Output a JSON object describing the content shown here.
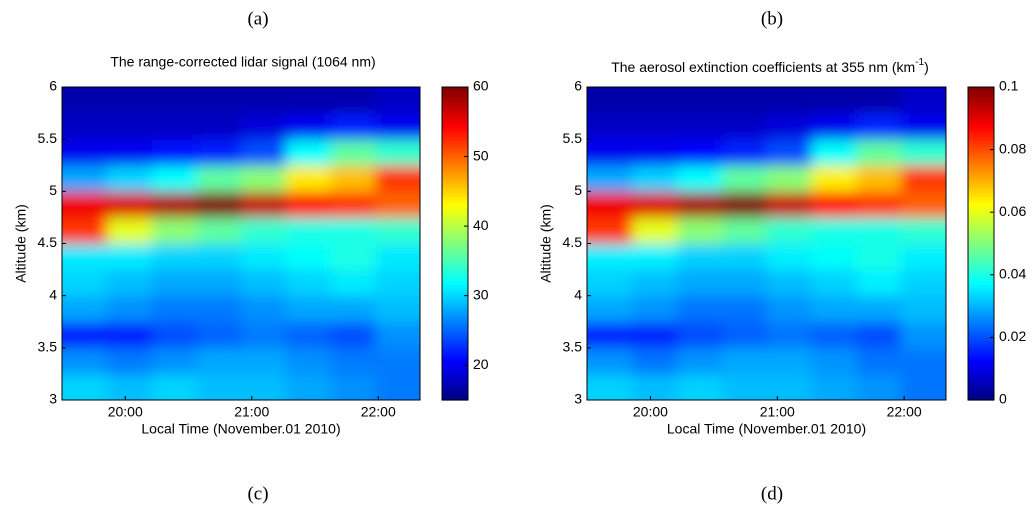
{
  "captions": [
    "(a)",
    "(b)",
    "(c)",
    "(d)"
  ],
  "chart_data": [
    {
      "type": "heatmap",
      "title": "The range-corrected lidar signal (1064 nm)",
      "xlabel": "Local Time (November.01 2010)",
      "ylabel": "Altitude (km)",
      "colormap": "jet",
      "x": [
        19.68,
        20.03,
        20.39,
        20.74,
        21.09,
        21.45,
        21.8,
        22.15
      ],
      "y": [
        3.125,
        3.375,
        3.625,
        3.875,
        4.125,
        4.375,
        4.625,
        4.875,
        5.125,
        5.375,
        5.625,
        5.875
      ],
      "z": [
        [
          30,
          29,
          30,
          29,
          29,
          28,
          27,
          26
        ],
        [
          27,
          26,
          27,
          28,
          28,
          27,
          26,
          26
        ],
        [
          22,
          22,
          24,
          25,
          26,
          25,
          24,
          27
        ],
        [
          28,
          27,
          26,
          26,
          27,
          28,
          28,
          29
        ],
        [
          30,
          29,
          28,
          28,
          29,
          30,
          31,
          30
        ],
        [
          31,
          31,
          30,
          30,
          31,
          32,
          33,
          31
        ],
        [
          52,
          42,
          38,
          36,
          34,
          33,
          33,
          34
        ],
        [
          55,
          56,
          58,
          60,
          57,
          54,
          52,
          50
        ],
        [
          28,
          30,
          32,
          36,
          38,
          44,
          46,
          52
        ],
        [
          20,
          20,
          21,
          22,
          24,
          32,
          36,
          34
        ],
        [
          18,
          18,
          18,
          18,
          19,
          20,
          22,
          20
        ],
        [
          17,
          17,
          17,
          17,
          17,
          17,
          17,
          18
        ]
      ],
      "xlim": [
        19.5,
        22.33
      ],
      "ylim": [
        3,
        6
      ],
      "xticks": [
        {
          "value": 20,
          "label": "20:00"
        },
        {
          "value": 21,
          "label": "21:00"
        },
        {
          "value": 22,
          "label": "22:00"
        }
      ],
      "yticks": [
        3,
        3.5,
        4,
        4.5,
        5,
        5.5,
        6
      ],
      "clim": [
        15,
        60
      ],
      "cticks": [
        20,
        30,
        40,
        50,
        60
      ]
    },
    {
      "type": "heatmap",
      "title": "The aerosol extinction coefficients at 355 nm (km",
      "title_superscript": "-1",
      "title_suffix": ")",
      "xlabel": "Local Time (November.01 2010)",
      "ylabel": "Altitude (km)",
      "colormap": "jet",
      "x": [
        19.68,
        20.03,
        20.39,
        20.74,
        21.09,
        21.45,
        21.8,
        22.15
      ],
      "y": [
        3.125,
        3.375,
        3.625,
        3.875,
        4.125,
        4.375,
        4.625,
        4.875,
        5.125,
        5.375,
        5.625,
        5.875
      ],
      "z": [
        [
          0.033,
          0.031,
          0.033,
          0.031,
          0.031,
          0.029,
          0.027,
          0.024
        ],
        [
          0.027,
          0.024,
          0.027,
          0.029,
          0.029,
          0.027,
          0.024,
          0.024
        ],
        [
          0.016,
          0.016,
          0.02,
          0.022,
          0.024,
          0.022,
          0.02,
          0.027
        ],
        [
          0.029,
          0.027,
          0.024,
          0.024,
          0.027,
          0.029,
          0.029,
          0.031
        ],
        [
          0.033,
          0.031,
          0.029,
          0.029,
          0.031,
          0.033,
          0.036,
          0.033
        ],
        [
          0.036,
          0.036,
          0.033,
          0.033,
          0.036,
          0.038,
          0.04,
          0.036
        ],
        [
          0.082,
          0.06,
          0.051,
          0.047,
          0.042,
          0.04,
          0.04,
          0.042
        ],
        [
          0.089,
          0.091,
          0.096,
          0.1,
          0.093,
          0.087,
          0.082,
          0.078
        ],
        [
          0.029,
          0.033,
          0.038,
          0.047,
          0.051,
          0.064,
          0.069,
          0.082
        ],
        [
          0.011,
          0.011,
          0.013,
          0.016,
          0.02,
          0.038,
          0.047,
          0.042
        ],
        [
          0.007,
          0.007,
          0.007,
          0.007,
          0.009,
          0.011,
          0.016,
          0.011
        ],
        [
          0.004,
          0.004,
          0.004,
          0.004,
          0.004,
          0.004,
          0.004,
          0.007
        ]
      ],
      "xlim": [
        19.5,
        22.33
      ],
      "ylim": [
        3,
        6
      ],
      "xticks": [
        {
          "value": 20,
          "label": "20:00"
        },
        {
          "value": 21,
          "label": "21:00"
        },
        {
          "value": 22,
          "label": "22:00"
        }
      ],
      "yticks": [
        3,
        3.5,
        4,
        4.5,
        5,
        5.5,
        6
      ],
      "clim": [
        0,
        0.1
      ],
      "cticks": [
        0,
        0.02,
        0.04,
        0.06,
        0.08,
        0.1
      ]
    }
  ]
}
